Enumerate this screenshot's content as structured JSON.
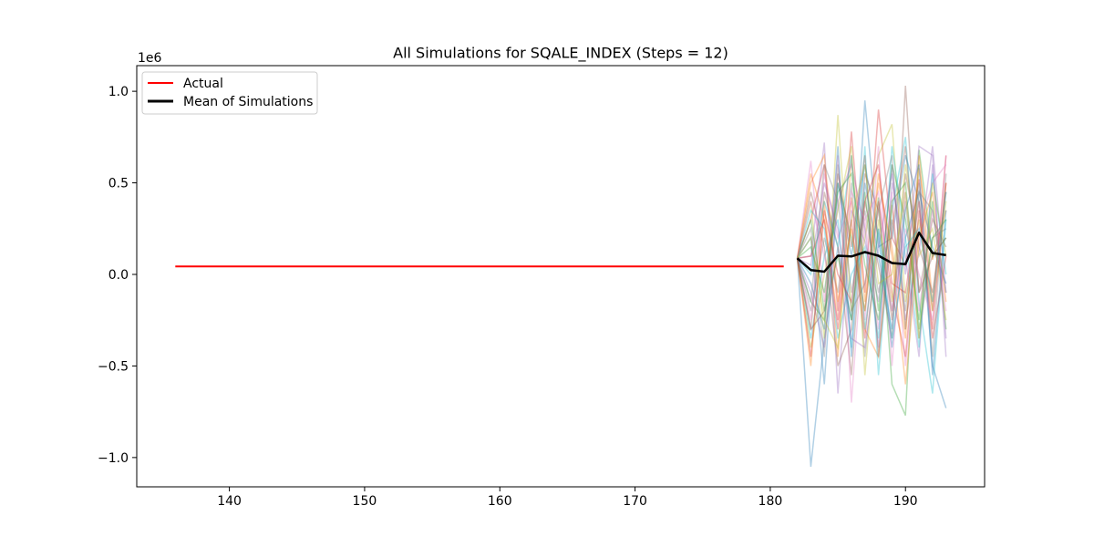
{
  "chart_data": {
    "type": "line",
    "title": "All Simulations for SQALE_INDEX (Steps = 12)",
    "xlabel": "",
    "ylabel": "",
    "xlim": [
      133.15,
      195.85
    ],
    "ylim": [
      -1160000,
      1140000
    ],
    "y_multiplier_label": "1e6",
    "x_ticks": [
      140,
      150,
      160,
      170,
      180,
      190
    ],
    "x_tick_labels": [
      "140",
      "150",
      "160",
      "170",
      "180",
      "190"
    ],
    "y_ticks": [
      -1000000,
      -500000,
      0,
      500000,
      1000000
    ],
    "y_tick_labels": [
      "−1.0",
      "−0.5",
      "0.0",
      "0.5",
      "1.0"
    ],
    "grid": false,
    "legend_position": "top-left",
    "legend": [
      "Actual",
      "Mean of Simulations"
    ],
    "series": [
      {
        "name": "Actual",
        "color": "#ff0000",
        "x": [
          136,
          181
        ],
        "y": [
          44000,
          44000
        ]
      },
      {
        "name": "Mean of Simulations",
        "color": "#000000",
        "x": [
          182,
          183,
          184,
          185,
          186,
          187,
          188,
          189,
          190,
          191,
          192,
          193
        ],
        "y": [
          88000,
          24000,
          15000,
          102000,
          98000,
          122000,
          102000,
          62000,
          56000,
          228000,
          117000,
          105000
        ]
      }
    ],
    "simulation_x": [
      182,
      183,
      184,
      185,
      186,
      187,
      188,
      189,
      190,
      191,
      192,
      193
    ],
    "simulation_colors": [
      "#1f77b4",
      "#ff7f0e",
      "#2ca02c",
      "#d62728",
      "#9467bd",
      "#8c564b",
      "#e377c2",
      "#7f7f7f",
      "#bcbd22",
      "#17becf"
    ],
    "simulations": [
      [
        88000,
        -1050000,
        -350000,
        150000,
        -250000,
        950000,
        150000,
        200000,
        650000,
        400000,
        -500000,
        -730000
      ],
      [
        88000,
        550000,
        300000,
        -250000,
        420000,
        -300000,
        -450000,
        380000,
        -300000,
        580000,
        80000,
        350000
      ],
      [
        88000,
        -150000,
        -250000,
        500000,
        200000,
        -200000,
        420000,
        -600000,
        -770000,
        680000,
        100000,
        200000
      ],
      [
        88000,
        300000,
        600000,
        -200000,
        780000,
        -100000,
        900000,
        200000,
        50000,
        520000,
        -200000,
        650000
      ],
      [
        88000,
        100000,
        720000,
        -650000,
        350000,
        180000,
        -150000,
        600000,
        -250000,
        120000,
        700000,
        -100000
      ],
      [
        88000,
        -300000,
        450000,
        150000,
        -550000,
        400000,
        50000,
        -350000,
        1030000,
        -100000,
        300000,
        150000
      ],
      [
        88000,
        620000,
        -150000,
        650000,
        -700000,
        300000,
        -300000,
        450000,
        -500000,
        250000,
        500000,
        600000
      ],
      [
        88000,
        -200000,
        200000,
        -100000,
        500000,
        -450000,
        250000,
        -200000,
        400000,
        -350000,
        200000,
        250000
      ],
      [
        88000,
        400000,
        -350000,
        870000,
        -200000,
        200000,
        650000,
        820000,
        -150000,
        300000,
        -200000,
        400000
      ],
      [
        88000,
        -350000,
        100000,
        300000,
        -400000,
        700000,
        -550000,
        350000,
        750000,
        -150000,
        -650000,
        300000
      ],
      [
        88000,
        200000,
        -600000,
        500000,
        100000,
        600000,
        200000,
        -400000,
        200000,
        450000,
        150000,
        -50000
      ],
      [
        88000,
        -500000,
        400000,
        -450000,
        650000,
        -150000,
        500000,
        150000,
        -350000,
        650000,
        -150000,
        500000
      ],
      [
        88000,
        300000,
        -200000,
        100000,
        -250000,
        450000,
        -200000,
        600000,
        300000,
        -250000,
        400000,
        -300000
      ],
      [
        88000,
        100000,
        300000,
        -300000,
        300000,
        -350000,
        400000,
        -100000,
        -450000,
        350000,
        -350000,
        100000
      ],
      [
        88000,
        -100000,
        -400000,
        400000,
        600000,
        250000,
        -400000,
        500000,
        100000,
        -450000,
        600000,
        -350000
      ],
      [
        88000,
        450000,
        150000,
        -500000,
        -300000,
        550000,
        350000,
        -250000,
        550000,
        150000,
        -100000,
        450000
      ],
      [
        88000,
        -250000,
        550000,
        200000,
        400000,
        -250000,
        700000,
        -500000,
        450000,
        -200000,
        350000,
        -200000
      ],
      [
        88000,
        250000,
        -450000,
        600000,
        -100000,
        350000,
        -100000,
        300000,
        -200000,
        500000,
        -450000,
        550000
      ],
      [
        88000,
        -400000,
        0,
        350000,
        700000,
        -550000,
        300000,
        -150000,
        600000,
        100000,
        250000,
        -250000
      ],
      [
        88000,
        350000,
        250000,
        -350000,
        0,
        150000,
        -350000,
        700000,
        200000,
        -400000,
        550000,
        0
      ],
      [
        88000,
        -50000,
        -300000,
        700000,
        -450000,
        500000,
        100000,
        -300000,
        350000,
        600000,
        -550000,
        350000
      ],
      [
        88000,
        500000,
        650000,
        -150000,
        250000,
        -200000,
        550000,
        100000,
        -600000,
        200000,
        450000,
        -150000
      ],
      [
        88000,
        150000,
        -100000,
        450000,
        550000,
        50000,
        -250000,
        400000,
        500000,
        -300000,
        200000,
        300000
      ],
      [
        88000,
        -450000,
        350000,
        0,
        -150000,
        400000,
        600000,
        -50000,
        -100000,
        400000,
        -300000,
        500000
      ],
      [
        88000,
        50000,
        500000,
        250000,
        -350000,
        -400000,
        150000,
        550000,
        0,
        700000,
        650000,
        -450000
      ],
      [
        88000,
        -300000,
        -200000,
        550000,
        150000,
        650000,
        -450000,
        250000,
        700000,
        -100000,
        100000,
        200000
      ],
      [
        88000,
        400000,
        100000,
        -250000,
        450000,
        300000,
        450000,
        -200000,
        250000,
        0,
        -250000,
        650000
      ],
      [
        88000,
        -150000,
        600000,
        400000,
        -200000,
        -50000,
        350000,
        650000,
        -300000,
        450000,
        350000,
        -100000
      ],
      [
        88000,
        200000,
        -250000,
        -400000,
        300000,
        600000,
        -50000,
        0,
        450000,
        -350000,
        500000,
        100000
      ],
      [
        88000,
        0,
        400000,
        150000,
        650000,
        -300000,
        250000,
        -350000,
        150000,
        250000,
        -150000,
        450000
      ]
    ]
  }
}
